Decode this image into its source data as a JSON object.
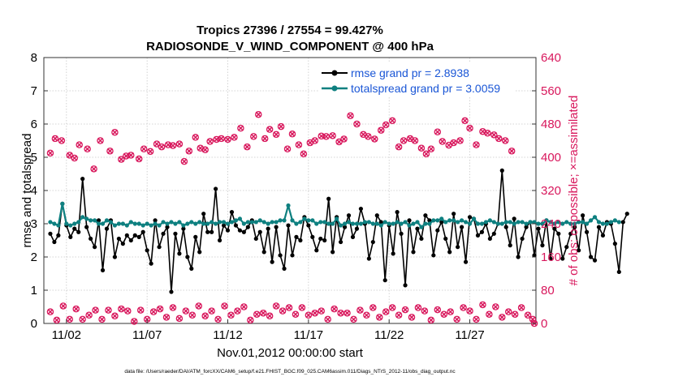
{
  "chart_data": {
    "type": "line",
    "title_line1": "Tropics 27396 / 27554 = 99.427%",
    "title_line2": "RADIOSONDE_V_WIND_COMPONENT @ 400 hPa",
    "xlabel": "Nov.01,2012 00:00:00 start",
    "ylabel_left": "rmse and totalspread",
    "ylabel_right": "# of obs: o=possible; ×=assimilated",
    "footer": "data file: /Users/raeder/DAI/ATM_forcXX/CAM6_setup/f.e21.FHIST_BGC.f09_025.CAM6assim.011/Diags_NTrS_2012-11/obs_diag_output.nc",
    "xlim": [
      0.6,
      31.1
    ],
    "ylim_left": [
      0,
      8
    ],
    "ylim_right": [
      0,
      640
    ],
    "x_tick_values": [
      2,
      7,
      12,
      17,
      22,
      27
    ],
    "x_tick_labels": [
      "11/02",
      "11/07",
      "11/12",
      "11/17",
      "11/22",
      "11/27"
    ],
    "y_left_ticks": [
      0,
      1,
      2,
      3,
      4,
      5,
      6,
      7,
      8
    ],
    "y_right_ticks": [
      0,
      80,
      160,
      240,
      320,
      400,
      480,
      560,
      640
    ],
    "colors": {
      "rmse": "#000000",
      "spread": "#0e8080",
      "obs": "#d8175c",
      "legend_text": "#1a56d6",
      "axis_right": "#d8175c"
    },
    "x_step": 0.25,
    "x_start": 1,
    "series": [
      {
        "name": "rmse grand pr = 2.8938",
        "values": [
          2.7,
          2.45,
          2.65,
          3.6,
          2.95,
          2.6,
          2.85,
          2.75,
          4.35,
          2.9,
          2.55,
          2.3,
          3.1,
          1.6,
          2.85,
          3.1,
          2.0,
          2.55,
          2.4,
          2.65,
          2.5,
          2.65,
          2.6,
          2.75,
          2.2,
          1.8,
          3.1,
          2.3,
          2.7,
          2.9,
          0.95,
          2.7,
          2.1,
          2.85,
          2.0,
          1.65,
          2.6,
          2.15,
          3.3,
          2.75,
          2.75,
          4.05,
          2.5,
          2.95,
          2.8,
          3.35,
          2.95,
          2.8,
          2.75,
          2.9,
          3.1,
          2.55,
          2.75,
          2.15,
          2.85,
          1.85,
          2.9,
          2.05,
          1.65,
          2.95,
          2.05,
          2.6,
          2.5,
          3.2,
          2.95,
          2.6,
          2.2,
          2.55,
          2.5,
          3.75,
          2.15,
          3.2,
          2.45,
          2.9,
          3.25,
          2.6,
          2.85,
          3.45,
          3.0,
          1.95,
          2.45,
          3.25,
          3.05,
          1.3,
          2.95,
          2.1,
          3.35,
          2.7,
          1.15,
          3.1,
          2.15,
          2.85,
          2.55,
          3.25,
          3.1,
          2.05,
          2.8,
          3.05,
          2.55,
          2.15,
          3.3,
          2.3,
          2.9,
          1.85,
          3.2,
          3.15,
          2.65,
          2.75,
          3.0,
          2.55,
          2.7,
          3.0,
          4.6,
          2.9,
          2.35,
          3.15,
          2.0,
          2.55,
          2.9,
          3.05,
          2.05,
          2.85,
          2.35,
          3.1,
          1.95,
          2.85,
          2.7,
          1.95,
          2.3,
          2.7,
          2.9,
          2.2,
          3.25,
          2.75,
          2.0,
          1.9,
          2.9,
          2.65,
          3.05,
          3.0,
          2.4,
          1.55,
          3.05,
          3.3
        ]
      },
      {
        "name": "totalspread grand pr = 3.0059",
        "values": [
          3.05,
          3.0,
          2.95,
          3.6,
          3.0,
          2.95,
          3.0,
          3.05,
          3.2,
          3.15,
          3.1,
          3.1,
          3.0,
          3.0,
          3.1,
          3.05,
          2.95,
          3.0,
          3.0,
          2.95,
          3.05,
          3.0,
          3.0,
          2.95,
          3.0,
          2.95,
          3.0,
          2.95,
          3.05,
          3.0,
          3.05,
          3.0,
          3.05,
          2.95,
          3.0,
          3.05,
          3.0,
          3.05,
          3.0,
          3.0,
          3.05,
          3.0,
          3.05,
          3.05,
          3.0,
          3.05,
          3.1,
          3.15,
          3.0,
          3.05,
          3.05,
          3.05,
          3.1,
          3.05,
          3.0,
          3.05,
          3.05,
          3.1,
          3.1,
          3.55,
          3.1,
          3.0,
          3.05,
          3.15,
          3.1,
          3.1,
          3.0,
          3.05,
          3.05,
          3.0,
          3.0,
          3.15,
          2.95,
          3.0,
          3.05,
          3.0,
          3.0,
          3.0,
          3.05,
          3.05,
          3.0,
          3.0,
          2.95,
          3.05,
          3.0,
          3.0,
          3.05,
          3.0,
          3.05,
          2.95,
          3.0,
          3.05,
          2.9,
          3.0,
          3.0,
          3.1,
          3.1,
          3.15,
          3.05,
          3.1,
          3.1,
          3.05,
          3.1,
          3.05,
          3.0,
          3.15,
          3.0,
          3.0,
          3.05,
          3.1,
          3.05,
          3.0,
          3.0,
          3.05,
          3.05,
          3.0,
          3.05,
          3.05,
          3.0,
          3.05,
          3.05,
          3.0,
          3.0,
          3.1,
          3.05,
          3.0,
          3.05,
          3.0,
          3.05,
          3.0,
          3.0,
          3.05,
          3.05,
          3.0,
          3.1,
          3.2,
          3.05,
          3.0,
          3.0,
          3.05,
          3.1,
          3.05
        ]
      }
    ],
    "obs_high_possible": [
      [
        1.0,
        410
      ],
      [
        1.3,
        445
      ],
      [
        1.7,
        440
      ],
      [
        2.2,
        405
      ],
      [
        2.5,
        398
      ],
      [
        2.8,
        430
      ],
      [
        3.3,
        420
      ],
      [
        3.7,
        372
      ],
      [
        4.1,
        440
      ],
      [
        4.7,
        415
      ],
      [
        5.0,
        460
      ],
      [
        5.4,
        395
      ],
      [
        5.7,
        403
      ],
      [
        6.0,
        405
      ],
      [
        6.5,
        396
      ],
      [
        6.8,
        420
      ],
      [
        7.2,
        414
      ],
      [
        7.6,
        432
      ],
      [
        7.9,
        425
      ],
      [
        8.3,
        430
      ],
      [
        8.6,
        428
      ],
      [
        9.0,
        432
      ],
      [
        9.3,
        390
      ],
      [
        9.6,
        415
      ],
      [
        10.0,
        448
      ],
      [
        10.3,
        422
      ],
      [
        10.6,
        418
      ],
      [
        10.9,
        438
      ],
      [
        11.3,
        443
      ],
      [
        11.6,
        445
      ],
      [
        12.0,
        443
      ],
      [
        12.4,
        448
      ],
      [
        12.8,
        470
      ],
      [
        13.2,
        425
      ],
      [
        13.6,
        450
      ],
      [
        13.9,
        503
      ],
      [
        14.3,
        445
      ],
      [
        14.6,
        467
      ],
      [
        15.0,
        455
      ],
      [
        15.3,
        474
      ],
      [
        15.7,
        420
      ],
      [
        16.0,
        456
      ],
      [
        16.4,
        430
      ],
      [
        16.7,
        408
      ],
      [
        17.1,
        435
      ],
      [
        17.4,
        440
      ],
      [
        17.8,
        451
      ],
      [
        18.1,
        450
      ],
      [
        18.5,
        452
      ],
      [
        18.9,
        437
      ],
      [
        19.2,
        444
      ],
      [
        19.6,
        500
      ],
      [
        20.0,
        480
      ],
      [
        20.4,
        455
      ],
      [
        20.7,
        450
      ],
      [
        21.1,
        444
      ],
      [
        21.5,
        465
      ],
      [
        21.8,
        478
      ],
      [
        22.2,
        488
      ],
      [
        22.6,
        425
      ],
      [
        22.9,
        440
      ],
      [
        23.3,
        445
      ],
      [
        23.6,
        440
      ],
      [
        24.0,
        422
      ],
      [
        24.3,
        408
      ],
      [
        24.6,
        420
      ],
      [
        25.0,
        461
      ],
      [
        25.3,
        438
      ],
      [
        25.7,
        429
      ],
      [
        26.0,
        435
      ],
      [
        26.4,
        440
      ],
      [
        26.7,
        488
      ],
      [
        27.0,
        470
      ],
      [
        27.4,
        430
      ],
      [
        27.8,
        462
      ],
      [
        28.1,
        458
      ],
      [
        28.5,
        454
      ],
      [
        28.8,
        445
      ],
      [
        29.2,
        440
      ],
      [
        29.6,
        415
      ]
    ],
    "obs_low_possible": [
      [
        1.0,
        28
      ],
      [
        1.4,
        8
      ],
      [
        1.8,
        42
      ],
      [
        2.2,
        10
      ],
      [
        2.6,
        35
      ],
      [
        3.0,
        10
      ],
      [
        3.4,
        20
      ],
      [
        3.8,
        32
      ],
      [
        4.2,
        10
      ],
      [
        4.6,
        32
      ],
      [
        5.0,
        18
      ],
      [
        5.4,
        35
      ],
      [
        5.8,
        30
      ],
      [
        6.2,
        5
      ],
      [
        6.6,
        32
      ],
      [
        7.0,
        10
      ],
      [
        7.4,
        28
      ],
      [
        7.8,
        35
      ],
      [
        8.2,
        15
      ],
      [
        8.6,
        38
      ],
      [
        9.0,
        12
      ],
      [
        9.4,
        30
      ],
      [
        9.8,
        20
      ],
      [
        10.2,
        42
      ],
      [
        10.6,
        18
      ],
      [
        11.0,
        30
      ],
      [
        11.4,
        10
      ],
      [
        11.8,
        42
      ],
      [
        12.2,
        20
      ],
      [
        12.6,
        30
      ],
      [
        13.0,
        40
      ],
      [
        13.4,
        8
      ],
      [
        13.8,
        22
      ],
      [
        14.2,
        25
      ],
      [
        14.6,
        18
      ],
      [
        15.0,
        42
      ],
      [
        15.4,
        30
      ],
      [
        15.8,
        38
      ],
      [
        16.2,
        22
      ],
      [
        16.6,
        38
      ],
      [
        17.0,
        20
      ],
      [
        17.4,
        25
      ],
      [
        17.8,
        30
      ],
      [
        18.2,
        10
      ],
      [
        18.6,
        35
      ],
      [
        19.0,
        25
      ],
      [
        19.4,
        25
      ],
      [
        19.8,
        10
      ],
      [
        20.2,
        32
      ],
      [
        20.6,
        20
      ],
      [
        21.0,
        38
      ],
      [
        21.4,
        15
      ],
      [
        21.8,
        28
      ],
      [
        22.2,
        38
      ],
      [
        22.6,
        20
      ],
      [
        23.0,
        33
      ],
      [
        23.4,
        15
      ],
      [
        23.8,
        38
      ],
      [
        24.2,
        30
      ],
      [
        24.6,
        8
      ],
      [
        25.0,
        33
      ],
      [
        25.4,
        22
      ],
      [
        25.8,
        28
      ],
      [
        26.2,
        10
      ],
      [
        26.6,
        38
      ],
      [
        27.0,
        30
      ],
      [
        27.4,
        10
      ],
      [
        27.8,
        45
      ],
      [
        28.2,
        22
      ],
      [
        28.6,
        40
      ],
      [
        29.0,
        15
      ],
      [
        29.4,
        28
      ],
      [
        29.8,
        22
      ],
      [
        30.2,
        38
      ],
      [
        30.6,
        20
      ],
      [
        30.9,
        10
      ],
      [
        31.0,
        0
      ]
    ]
  }
}
